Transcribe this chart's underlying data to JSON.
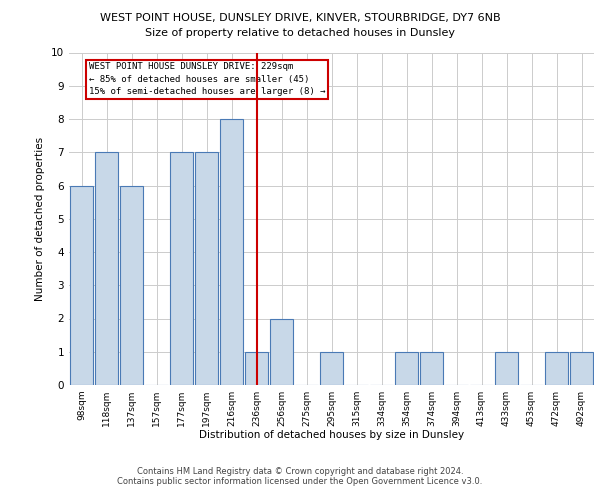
{
  "title_line1": "WEST POINT HOUSE, DUNSLEY DRIVE, KINVER, STOURBRIDGE, DY7 6NB",
  "title_line2": "Size of property relative to detached houses in Dunsley",
  "xlabel": "Distribution of detached houses by size in Dunsley",
  "ylabel": "Number of detached properties",
  "categories": [
    "98sqm",
    "118sqm",
    "137sqm",
    "157sqm",
    "177sqm",
    "197sqm",
    "216sqm",
    "236sqm",
    "256sqm",
    "275sqm",
    "295sqm",
    "315sqm",
    "334sqm",
    "354sqm",
    "374sqm",
    "394sqm",
    "413sqm",
    "433sqm",
    "453sqm",
    "472sqm",
    "492sqm"
  ],
  "values": [
    6,
    7,
    6,
    0,
    7,
    7,
    8,
    1,
    2,
    0,
    1,
    0,
    0,
    1,
    1,
    0,
    0,
    1,
    0,
    1,
    1
  ],
  "bar_color": "#c8d8e8",
  "bar_edge_color": "#4a7ab5",
  "vline_x": 7.0,
  "subject_label_line1": "WEST POINT HOUSE DUNSLEY DRIVE: 229sqm",
  "subject_label_line2": "← 85% of detached houses are smaller (45)",
  "subject_label_line3": "15% of semi-detached houses are larger (8) →",
  "vline_color": "#cc0000",
  "annotation_box_edge_color": "#cc0000",
  "ylim": [
    0,
    10
  ],
  "yticks": [
    0,
    1,
    2,
    3,
    4,
    5,
    6,
    7,
    8,
    9,
    10
  ],
  "grid_color": "#cccccc",
  "footer_line1": "Contains HM Land Registry data © Crown copyright and database right 2024.",
  "footer_line2": "Contains public sector information licensed under the Open Government Licence v3.0."
}
